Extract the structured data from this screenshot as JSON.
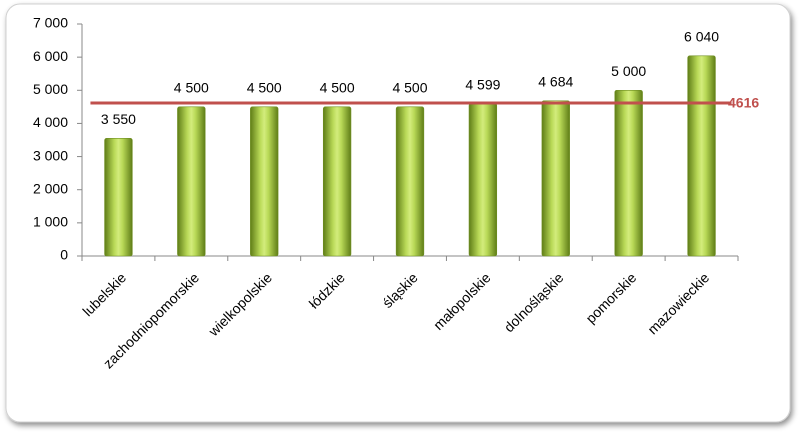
{
  "chart_data": {
    "type": "bar",
    "categories": [
      "lubelskie",
      "zachodniopomorskie",
      "wielkopolskie",
      "łódzkie",
      "śląskie",
      "małopolskie",
      "dolnośląskie",
      "pomorskie",
      "mazowieckie"
    ],
    "values": [
      3550,
      4500,
      4500,
      4500,
      4500,
      4599,
      4684,
      5000,
      6040
    ],
    "value_labels": [
      "3 550",
      "4 500",
      "4 500",
      "4 500",
      "4 500",
      "4 599",
      "4 684",
      "5 000",
      "6 040"
    ],
    "color": "#9bbb3b",
    "ylim": [
      0,
      7000
    ],
    "yticks": [
      0,
      {
        "value": 1000,
        "label": "1 000"
      },
      {
        "value": 2000,
        "label": "2 000"
      },
      {
        "value": 3000,
        "label": "3 000"
      },
      {
        "value": 4000,
        "label": "4 000"
      },
      {
        "value": 5000,
        "label": "5 000"
      },
      {
        "value": 6000,
        "label": "6 000"
      },
      {
        "value": 7000,
        "label": "7 000"
      }
    ],
    "reference_line": {
      "value": 4616,
      "color": "#c0504d"
    }
  }
}
